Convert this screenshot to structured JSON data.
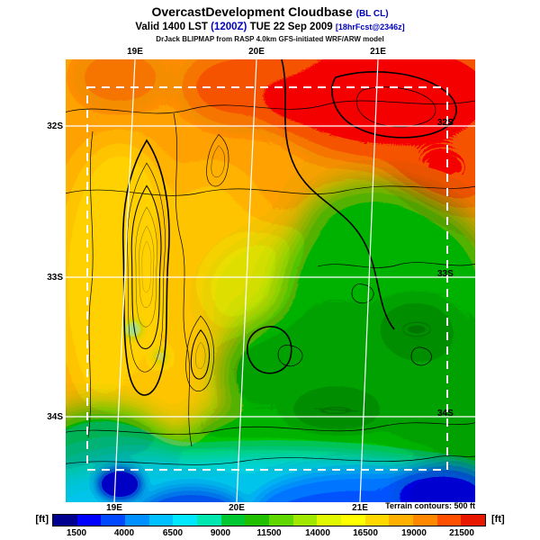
{
  "header": {
    "title": "OvercastDevelopment Cloudbase",
    "title_suffix": "(BL CL)",
    "valid_prefix": "Valid 1400 LST",
    "valid_time": "(1200Z)",
    "valid_date": "TUE 22 Sep 2009",
    "fcst_info": "[18hrFcst@2346z]",
    "model_line": "DrJack BLIPMAP from RASP 4.0km GFS-initiated WRF/ARW model"
  },
  "map": {
    "axis": {
      "top": [
        "19E",
        "20E",
        "21E"
      ],
      "bottom": [
        "19E",
        "20E",
        "21E"
      ],
      "left": [
        "32S",
        "33S",
        "34S"
      ],
      "right": [
        "32S",
        "33S",
        "34S"
      ]
    },
    "note": "Terrain contours: 500 ft"
  },
  "colorbar": {
    "unit_label": "[ft]",
    "tick_labels": [
      "1500",
      "4000",
      "6500",
      "9000",
      "11500",
      "14000",
      "16500",
      "19000",
      "21500"
    ],
    "colors": [
      "#000090",
      "#0000ff",
      "#0048ff",
      "#0090ff",
      "#00c0ff",
      "#00e8ff",
      "#00e8b0",
      "#00c830",
      "#20c000",
      "#60d800",
      "#a0e800",
      "#e0f800",
      "#ffff00",
      "#ffd800",
      "#ffb000",
      "#ff8800",
      "#ff5000",
      "#e81800"
    ]
  },
  "colors": {
    "accent_blue": "#0000bb",
    "grid_white": "#ffffff",
    "contour_black": "#000000"
  },
  "chart_data": {
    "type": "heatmap",
    "title": "OvercastDevelopment Cloudbase (BL CL)",
    "valid": "1400 LST (1200Z) TUE 22 Sep 2009",
    "forecast": "18hrFcst@2346z",
    "units": "ft",
    "scale_ticks": [
      1500,
      4000,
      6500,
      9000,
      11500,
      14000,
      16500,
      19000,
      21500
    ],
    "scale_range": [
      250,
      22750
    ],
    "contour_note": "Terrain contours: 500 ft",
    "x_ticks": [
      "19E",
      "20E",
      "21E"
    ],
    "y_ticks": [
      "32S",
      "33S",
      "34S"
    ],
    "field_summary": "High cloudbase (16000-21500 ft, orange/red) across northern third; mid values (9000-14000 ft, yellow/green) center and east; low cloudbase (1500-6500 ft, cyan/blue) along southern coastal strip"
  }
}
